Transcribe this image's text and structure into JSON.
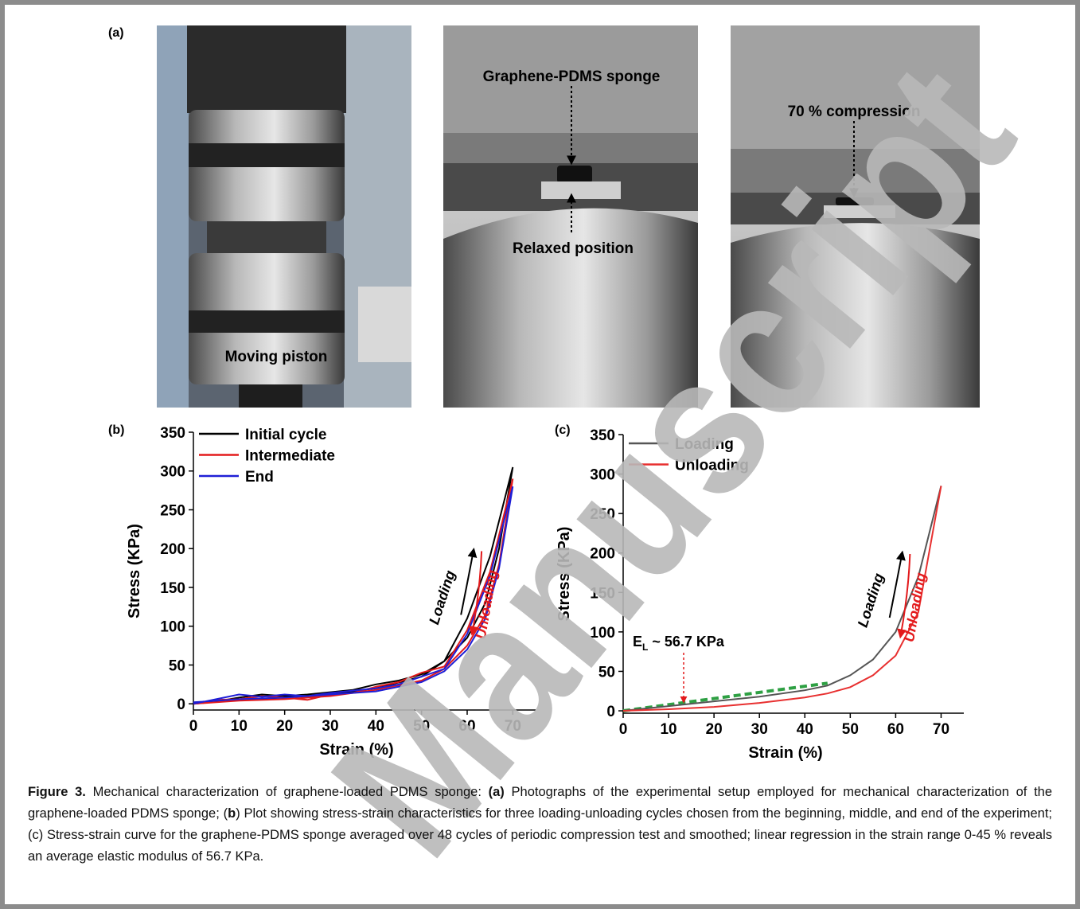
{
  "panel_labels": [
    "(a)",
    "(b)",
    "(c)"
  ],
  "photos": [
    {
      "labels": [
        "Moving piston"
      ]
    },
    {
      "labels": [
        "Graphene-PDMS sponge",
        "Relaxed position"
      ]
    },
    {
      "labels": [
        "70 % compression"
      ]
    }
  ],
  "chart_data": [
    {
      "type": "line",
      "xlabel": "Strain (%)",
      "ylabel": "Stress (KPa)",
      "x": [
        0,
        5,
        10,
        15,
        20,
        25,
        30,
        35,
        40,
        45,
        50,
        55,
        60,
        65,
        70,
        67,
        64,
        60,
        55,
        50,
        40,
        30,
        20,
        10,
        0
      ],
      "series": [
        {
          "name": "Initial cycle",
          "color": "#000000",
          "values": [
            0,
            3,
            8,
            12,
            10,
            12,
            15,
            18,
            25,
            30,
            38,
            55,
            110,
            190,
            305,
            200,
            130,
            85,
            55,
            35,
            20,
            12,
            8,
            5,
            0
          ]
        },
        {
          "name": "Intermediate",
          "color": "#e31a1c",
          "values": [
            0,
            5,
            6,
            10,
            8,
            5,
            12,
            14,
            22,
            28,
            40,
            48,
            95,
            170,
            290,
            180,
            115,
            75,
            45,
            30,
            18,
            10,
            6,
            4,
            0
          ]
        },
        {
          "name": "End",
          "color": "#1f1fd6",
          "values": [
            0,
            6,
            12,
            9,
            12,
            10,
            14,
            17,
            20,
            25,
            35,
            45,
            90,
            165,
            280,
            175,
            110,
            70,
            42,
            28,
            16,
            12,
            8,
            6,
            2
          ]
        }
      ],
      "xlim": [
        0,
        75
      ],
      "ylim": [
        -8,
        350
      ],
      "xticks": [
        0,
        10,
        20,
        30,
        40,
        50,
        60,
        70
      ],
      "yticks": [
        0,
        50,
        100,
        150,
        200,
        250,
        300,
        350
      ],
      "annotations": [
        "Loading",
        "Unloading"
      ]
    },
    {
      "type": "line",
      "xlabel": "Strain (%)",
      "ylabel": "Stress (KPa)",
      "x": [
        0,
        10,
        20,
        30,
        40,
        45,
        50,
        55,
        60,
        65,
        70
      ],
      "series": [
        {
          "name": "Loading",
          "color": "#555555",
          "values": [
            0,
            6,
            12,
            18,
            26,
            32,
            45,
            65,
            100,
            170,
            285
          ]
        },
        {
          "name": "Unloading",
          "color": "#e83030",
          "values": [
            0,
            2,
            5,
            10,
            17,
            22,
            30,
            45,
            70,
            125,
            285
          ]
        }
      ],
      "regression": {
        "color": "#2ea043",
        "x": [
          0,
          45
        ],
        "values": [
          0,
          35
        ]
      },
      "xlim": [
        0,
        75
      ],
      "ylim": [
        -3,
        350
      ],
      "xticks": [
        0,
        10,
        20,
        30,
        40,
        50,
        60,
        70
      ],
      "yticks": [
        0,
        50,
        100,
        150,
        200,
        250,
        300,
        350
      ],
      "annotations": [
        "Loading",
        "Unloading"
      ],
      "modulus_label": {
        "main": "E",
        "sub": "L",
        "rest": " ~ 56.7 KPa"
      }
    }
  ],
  "caption": [
    {
      "text": "Figure 3.",
      "bold": true
    },
    {
      "text": " Mechanical characterization of graphene-loaded PDMS sponge: ",
      "bold": false
    },
    {
      "text": "(a)",
      "bold": true
    },
    {
      "text": " Photographs of the experimental setup employed for mechanical characterization of the graphene-loaded PDMS sponge; (",
      "bold": false
    },
    {
      "text": "b",
      "bold": true
    },
    {
      "text": ") Plot showing stress-strain characteristics for three loading-unloading cycles chosen from the beginning, middle, and end of the experiment; (c) Stress-strain curve for the graphene-PDMS sponge averaged over 48 cycles of periodic compression test and smoothed; linear regression in the strain range 0-45 % reveals an average elastic modulus of 56.7 KPa.",
      "bold": false
    }
  ],
  "watermark": "Manuscript"
}
